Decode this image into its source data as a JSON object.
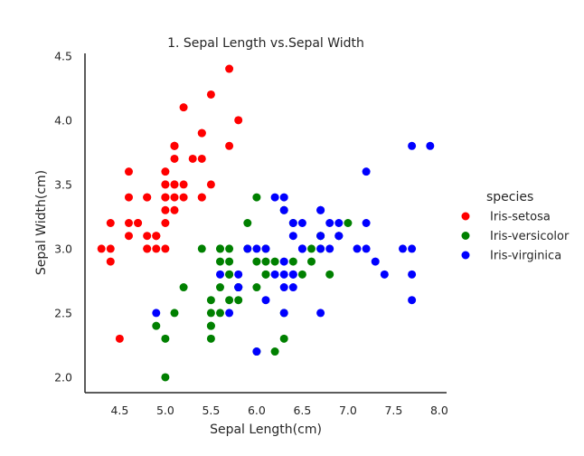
{
  "chart_data": {
    "type": "scatter",
    "title": "1. Sepal Length vs.Sepal Width",
    "xlabel": "Sepal Length(cm)",
    "ylabel": "Sepal Width(cm)",
    "xlim": [
      4.12,
      8.08
    ],
    "ylim": [
      1.88,
      4.52
    ],
    "xticks": [
      "4.5",
      "5.0",
      "5.5",
      "6.0",
      "6.5",
      "7.0",
      "7.5",
      "8.0"
    ],
    "yticks": [
      "2.0",
      "2.5",
      "3.0",
      "3.5",
      "4.0",
      "4.5"
    ],
    "grid": false,
    "legend": {
      "title": "species",
      "placement": "right"
    },
    "series": [
      {
        "name": "Iris-setosa",
        "color": "#ff0000",
        "points": [
          [
            5.1,
            3.5
          ],
          [
            4.9,
            3.0
          ],
          [
            4.7,
            3.2
          ],
          [
            4.6,
            3.1
          ],
          [
            5.0,
            3.6
          ],
          [
            5.4,
            3.9
          ],
          [
            4.6,
            3.4
          ],
          [
            5.0,
            3.4
          ],
          [
            4.4,
            2.9
          ],
          [
            4.9,
            3.1
          ],
          [
            5.4,
            3.7
          ],
          [
            4.8,
            3.4
          ],
          [
            4.8,
            3.0
          ],
          [
            4.3,
            3.0
          ],
          [
            5.8,
            4.0
          ],
          [
            5.7,
            4.4
          ],
          [
            5.4,
            3.9
          ],
          [
            5.1,
            3.5
          ],
          [
            5.7,
            3.8
          ],
          [
            5.1,
            3.8
          ],
          [
            5.4,
            3.4
          ],
          [
            5.1,
            3.7
          ],
          [
            4.6,
            3.6
          ],
          [
            5.1,
            3.3
          ],
          [
            4.8,
            3.4
          ],
          [
            5.0,
            3.0
          ],
          [
            5.0,
            3.4
          ],
          [
            5.2,
            3.5
          ],
          [
            5.2,
            3.4
          ],
          [
            4.7,
            3.2
          ],
          [
            4.8,
            3.1
          ],
          [
            5.4,
            3.4
          ],
          [
            5.2,
            4.1
          ],
          [
            5.5,
            4.2
          ],
          [
            4.9,
            3.1
          ],
          [
            5.0,
            3.2
          ],
          [
            5.5,
            3.5
          ],
          [
            4.9,
            3.1
          ],
          [
            4.4,
            3.0
          ],
          [
            5.1,
            3.4
          ],
          [
            5.0,
            3.5
          ],
          [
            4.5,
            2.3
          ],
          [
            4.4,
            3.2
          ],
          [
            5.0,
            3.5
          ],
          [
            5.1,
            3.8
          ],
          [
            4.8,
            3.0
          ],
          [
            5.1,
            3.8
          ],
          [
            4.6,
            3.2
          ],
          [
            5.3,
            3.7
          ],
          [
            5.0,
            3.3
          ]
        ]
      },
      {
        "name": "Iris-versicolor",
        "color": "#008000",
        "points": [
          [
            7.0,
            3.2
          ],
          [
            6.4,
            3.2
          ],
          [
            6.9,
            3.1
          ],
          [
            5.5,
            2.3
          ],
          [
            6.5,
            2.8
          ],
          [
            5.7,
            2.8
          ],
          [
            6.3,
            3.3
          ],
          [
            4.9,
            2.4
          ],
          [
            6.6,
            2.9
          ],
          [
            5.2,
            2.7
          ],
          [
            5.0,
            2.0
          ],
          [
            5.9,
            3.0
          ],
          [
            6.0,
            2.2
          ],
          [
            6.1,
            2.9
          ],
          [
            5.6,
            2.9
          ],
          [
            6.7,
            3.1
          ],
          [
            5.6,
            3.0
          ],
          [
            5.8,
            2.7
          ],
          [
            6.2,
            2.2
          ],
          [
            5.6,
            2.5
          ],
          [
            5.9,
            3.2
          ],
          [
            6.1,
            2.8
          ],
          [
            6.3,
            2.5
          ],
          [
            6.1,
            2.8
          ],
          [
            6.4,
            2.9
          ],
          [
            6.6,
            3.0
          ],
          [
            6.8,
            2.8
          ],
          [
            6.7,
            3.0
          ],
          [
            6.0,
            2.9
          ],
          [
            5.7,
            2.6
          ],
          [
            5.5,
            2.4
          ],
          [
            5.5,
            2.4
          ],
          [
            5.8,
            2.7
          ],
          [
            6.0,
            2.7
          ],
          [
            5.4,
            3.0
          ],
          [
            6.0,
            3.4
          ],
          [
            6.7,
            3.1
          ],
          [
            6.3,
            2.3
          ],
          [
            5.6,
            3.0
          ],
          [
            5.5,
            2.5
          ],
          [
            5.5,
            2.6
          ],
          [
            6.1,
            3.0
          ],
          [
            5.8,
            2.6
          ],
          [
            5.0,
            2.3
          ],
          [
            5.6,
            2.7
          ],
          [
            5.7,
            3.0
          ],
          [
            5.7,
            2.9
          ],
          [
            6.2,
            2.9
          ],
          [
            5.1,
            2.5
          ],
          [
            5.7,
            2.8
          ]
        ]
      },
      {
        "name": "Iris-virginica",
        "color": "#0000ff",
        "points": [
          [
            6.3,
            3.3
          ],
          [
            5.8,
            2.7
          ],
          [
            7.1,
            3.0
          ],
          [
            6.3,
            2.9
          ],
          [
            6.5,
            3.0
          ],
          [
            7.6,
            3.0
          ],
          [
            4.9,
            2.5
          ],
          [
            7.3,
            2.9
          ],
          [
            6.7,
            2.5
          ],
          [
            7.2,
            3.6
          ],
          [
            6.5,
            3.2
          ],
          [
            6.4,
            2.7
          ],
          [
            6.8,
            3.0
          ],
          [
            5.7,
            2.5
          ],
          [
            5.8,
            2.8
          ],
          [
            6.4,
            3.2
          ],
          [
            6.5,
            3.0
          ],
          [
            7.7,
            3.8
          ],
          [
            7.7,
            2.6
          ],
          [
            6.0,
            2.2
          ],
          [
            6.9,
            3.2
          ],
          [
            5.6,
            2.8
          ],
          [
            7.7,
            2.8
          ],
          [
            6.3,
            2.7
          ],
          [
            6.7,
            3.3
          ],
          [
            7.2,
            3.2
          ],
          [
            6.2,
            2.8
          ],
          [
            6.1,
            3.0
          ],
          [
            6.4,
            2.8
          ],
          [
            7.2,
            3.0
          ],
          [
            7.4,
            2.8
          ],
          [
            7.9,
            3.8
          ],
          [
            6.4,
            2.8
          ],
          [
            6.3,
            2.8
          ],
          [
            6.1,
            2.6
          ],
          [
            7.7,
            3.0
          ],
          [
            6.3,
            3.4
          ],
          [
            6.4,
            3.1
          ],
          [
            6.0,
            3.0
          ],
          [
            6.9,
            3.1
          ],
          [
            6.7,
            3.1
          ],
          [
            6.9,
            3.1
          ],
          [
            5.8,
            2.7
          ],
          [
            6.8,
            3.2
          ],
          [
            6.7,
            3.3
          ],
          [
            6.7,
            3.0
          ],
          [
            6.3,
            2.5
          ],
          [
            6.5,
            3.0
          ],
          [
            6.2,
            3.4
          ],
          [
            5.9,
            3.0
          ]
        ]
      }
    ]
  }
}
